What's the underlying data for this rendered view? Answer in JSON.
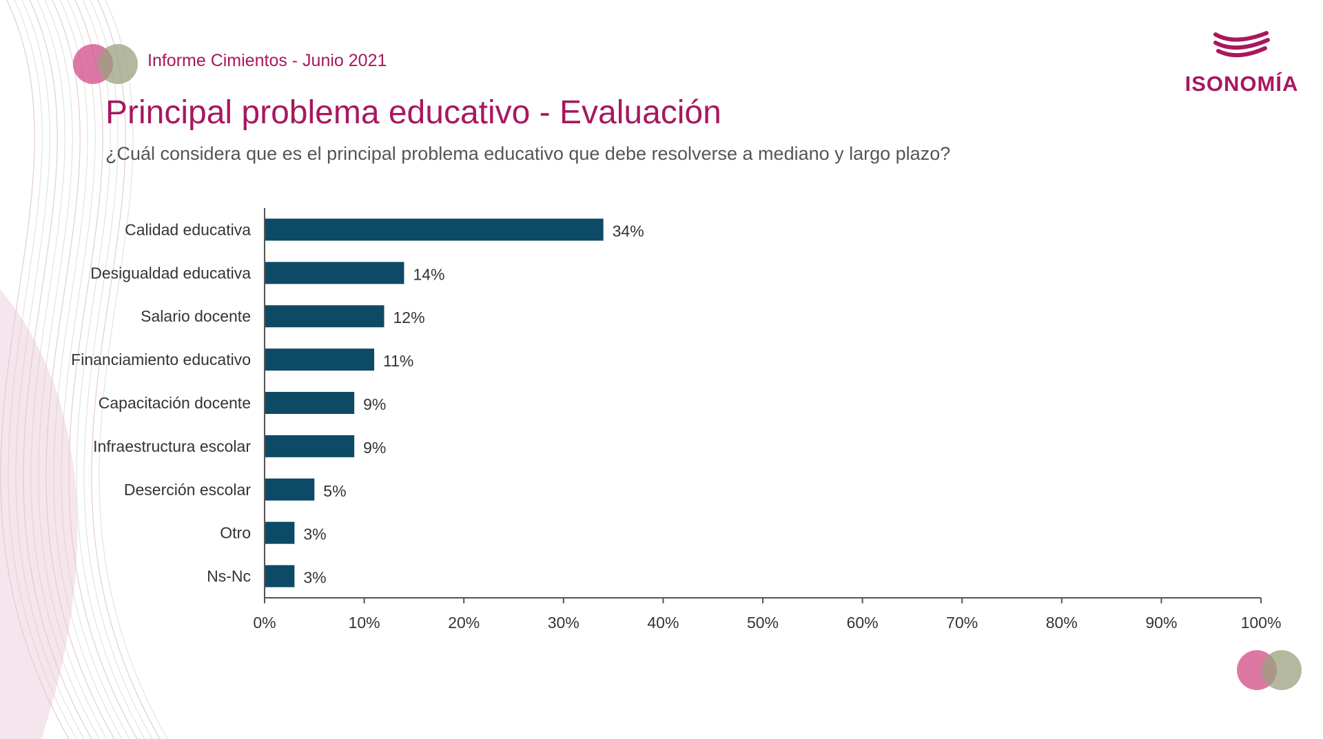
{
  "header": {
    "report_label": "Informe Cimientos - Junio 2021",
    "title": "Principal problema educativo - Evaluación",
    "question": "¿Cuál considera que es el principal problema educativo que debe resolverse a mediano y largo plazo?"
  },
  "logo": {
    "text": "ISONOMÍA"
  },
  "colors": {
    "brand": "#a8175f",
    "bar": "#0d4a66",
    "circle_pink": "#d4568f",
    "circle_olive": "#9aa07f"
  },
  "chart_data": {
    "type": "bar",
    "orientation": "horizontal",
    "categories": [
      "Calidad educativa",
      "Desigualdad educativa",
      "Salario docente",
      "Financiamiento educativo",
      "Capacitación docente",
      "Infraestructura escolar",
      "Deserción escolar",
      "Otro",
      "Ns-Nc"
    ],
    "values": [
      34,
      14,
      12,
      11,
      9,
      9,
      5,
      3,
      3
    ],
    "value_labels": [
      "34%",
      "14%",
      "12%",
      "11%",
      "9%",
      "9%",
      "5%",
      "3%",
      "3%"
    ],
    "xlim": [
      0,
      100
    ],
    "xticks": [
      0,
      10,
      20,
      30,
      40,
      50,
      60,
      70,
      80,
      90,
      100
    ],
    "xtick_labels": [
      "0%",
      "10%",
      "20%",
      "30%",
      "40%",
      "50%",
      "60%",
      "70%",
      "80%",
      "90%",
      "100%"
    ],
    "grid": false,
    "legend": "none"
  }
}
